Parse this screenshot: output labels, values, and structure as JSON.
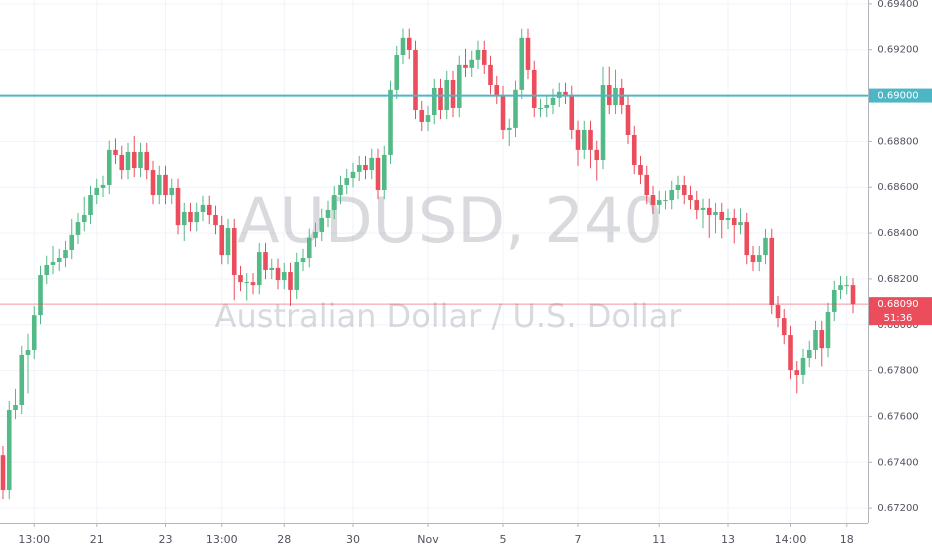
{
  "chart_data": {
    "type": "candlestick",
    "title": "AUDUSD, 240",
    "subtitle": "Australian Dollar / U.S. Dollar",
    "categories": [
      null,
      null,
      null,
      null,
      null,
      "13:00",
      null,
      null,
      null,
      null,
      null,
      null,
      null,
      null,
      null,
      "21",
      null,
      null,
      null,
      null,
      null,
      null,
      null,
      null,
      null,
      null,
      "23",
      null,
      null,
      null,
      null,
      null,
      null,
      null,
      null,
      "13:00",
      null,
      null,
      null,
      null,
      null,
      null,
      null,
      null,
      null,
      "28",
      null,
      null,
      null,
      null,
      null,
      null,
      null,
      null,
      null,
      null,
      "30",
      null,
      null,
      null,
      null,
      null,
      null,
      null,
      null,
      null,
      null,
      null,
      "Nov",
      null,
      null,
      null,
      null,
      null,
      null,
      null,
      null,
      null,
      null,
      null,
      "5",
      null,
      null,
      null,
      null,
      null,
      null,
      null,
      null,
      null,
      null,
      null,
      "7",
      null,
      null,
      null,
      null,
      null,
      null,
      null,
      null,
      null,
      null,
      null,
      null,
      "11",
      null,
      null,
      null,
      null,
      null,
      null,
      null,
      null,
      null,
      null,
      "13",
      null,
      null,
      null,
      null,
      null,
      null,
      null,
      null,
      null,
      "14:00",
      null,
      null,
      null,
      null,
      null,
      null,
      null,
      null,
      "18",
      null
    ],
    "open": [
      0.67431,
      0.67279,
      0.67628,
      0.6765,
      0.67868,
      0.6789,
      0.68042,
      0.68217,
      0.68261,
      0.68274,
      0.68291,
      0.68326,
      0.68392,
      0.68448,
      0.68479,
      0.68566,
      0.68597,
      0.6861,
      0.68763,
      0.68741,
      0.68675,
      0.68754,
      0.68684,
      0.68754,
      0.68675,
      0.68566,
      0.68654,
      0.68566,
      0.68597,
      0.68435,
      0.68492,
      0.68448,
      0.68492,
      0.68523,
      0.68479,
      0.68435,
      0.68304,
      0.68422,
      0.68217,
      0.68186,
      0.68186,
      0.68173,
      0.68317,
      0.68239,
      0.68248,
      0.68195,
      0.6823,
      0.68152,
      0.68274,
      0.68291,
      0.68379,
      0.68405,
      0.68466,
      0.68501,
      0.68566,
      0.6861,
      0.6864,
      0.68667,
      0.68697,
      0.68675,
      0.68728,
      0.68588,
      0.68741,
      0.69025,
      0.69177,
      0.69252,
      0.69199,
      0.68937,
      0.68885,
      0.68915,
      0.69033,
      0.68937,
      0.69068,
      0.68946,
      0.69134,
      0.69121,
      0.69156,
      0.69199,
      0.69134,
      0.69046,
      0.69003,
      0.6885,
      0.68859,
      0.69025,
      0.69252,
      0.69112,
      0.68946,
      0.68946,
      0.68959,
      0.6899,
      0.69016,
      0.69003,
      0.6885,
      0.68763,
      0.6885,
      0.68763,
      0.68719,
      0.69046,
      0.68959,
      0.69033,
      0.68959,
      0.68828,
      0.68697,
      0.68654,
      0.68566,
      0.68523,
      0.68544,
      0.68544,
      0.68588,
      0.6861,
      0.68566,
      0.68544,
      0.68501,
      0.6851,
      0.68479,
      0.68492,
      0.68457,
      0.68466,
      0.68435,
      0.68448,
      0.68304,
      0.68274,
      0.68304,
      0.68379,
      0.68086,
      0.68029,
      0.67955,
      0.67802,
      0.67781,
      0.67855,
      0.6789,
      0.67977,
      0.67898,
      0.68056,
      0.68152,
      0.68173,
      0.68173
    ],
    "high": [
      0.67471,
      0.67668,
      0.6772,
      0.67908,
      0.6796,
      0.68082,
      0.68257,
      0.68301,
      0.68344,
      0.68331,
      0.68366,
      0.68462,
      0.68488,
      0.68559,
      0.68606,
      0.68637,
      0.6865,
      0.68803,
      0.68813,
      0.68781,
      0.68794,
      0.68824,
      0.68794,
      0.68794,
      0.68715,
      0.68694,
      0.68694,
      0.68637,
      0.68637,
      0.68532,
      0.68532,
      0.68532,
      0.68563,
      0.68563,
      0.68519,
      0.68475,
      0.68462,
      0.68462,
      0.68257,
      0.68226,
      0.68226,
      0.68357,
      0.68357,
      0.68288,
      0.68288,
      0.6827,
      0.6827,
      0.68314,
      0.68331,
      0.68419,
      0.68445,
      0.68506,
      0.68541,
      0.68606,
      0.6865,
      0.6868,
      0.68707,
      0.68737,
      0.68737,
      0.68768,
      0.68768,
      0.68781,
      0.69065,
      0.69217,
      0.69292,
      0.69292,
      0.69239,
      0.68977,
      0.68955,
      0.69073,
      0.69073,
      0.69108,
      0.69108,
      0.69174,
      0.69204,
      0.69196,
      0.69239,
      0.69239,
      0.69174,
      0.69086,
      0.69043,
      0.68899,
      0.69065,
      0.69292,
      0.69292,
      0.69152,
      0.68986,
      0.68999,
      0.6903,
      0.69056,
      0.69056,
      0.69043,
      0.6889,
      0.6889,
      0.6889,
      0.68803,
      0.69126,
      0.69126,
      0.69113,
      0.69073,
      0.68999,
      0.68868,
      0.68737,
      0.68694,
      0.68606,
      0.68584,
      0.68584,
      0.68628,
      0.6865,
      0.6865,
      0.68606,
      0.68584,
      0.6855,
      0.6855,
      0.68532,
      0.68532,
      0.68506,
      0.68506,
      0.68508,
      0.68488,
      0.68344,
      0.68344,
      0.68419,
      0.68419,
      0.68126,
      0.68069,
      0.67995,
      0.67842,
      0.67895,
      0.6793,
      0.68017,
      0.68017,
      0.68096,
      0.68192,
      0.68213,
      0.68213,
      0.68203
    ],
    "low": [
      0.67239,
      0.67239,
      0.67588,
      0.6761,
      0.677,
      0.6785,
      0.68002,
      0.68177,
      0.68221,
      0.68234,
      0.68251,
      0.68286,
      0.68352,
      0.68408,
      0.68439,
      0.68526,
      0.68557,
      0.6857,
      0.68701,
      0.68635,
      0.68635,
      0.68644,
      0.68644,
      0.68635,
      0.68526,
      0.68526,
      0.68526,
      0.68526,
      0.68395,
      0.68365,
      0.68408,
      0.68408,
      0.68452,
      0.68439,
      0.68395,
      0.68264,
      0.68264,
      0.68107,
      0.68146,
      0.68106,
      0.68133,
      0.68133,
      0.68199,
      0.68199,
      0.68155,
      0.68155,
      0.68082,
      0.68112,
      0.68234,
      0.68251,
      0.68339,
      0.68365,
      0.68426,
      0.68461,
      0.68526,
      0.6857,
      0.686,
      0.68627,
      0.68635,
      0.68635,
      0.68548,
      0.68548,
      0.68701,
      0.68985,
      0.69137,
      0.69159,
      0.68897,
      0.68845,
      0.68845,
      0.68875,
      0.68897,
      0.68897,
      0.68906,
      0.68906,
      0.69081,
      0.69081,
      0.69116,
      0.69094,
      0.69006,
      0.68963,
      0.6881,
      0.6878,
      0.68819,
      0.68985,
      0.69072,
      0.68906,
      0.68906,
      0.68906,
      0.68919,
      0.6895,
      0.68963,
      0.6881,
      0.68693,
      0.68723,
      0.68683,
      0.68629,
      0.68679,
      0.68919,
      0.68919,
      0.68919,
      0.68788,
      0.68657,
      0.68614,
      0.68526,
      0.68483,
      0.68483,
      0.68504,
      0.68504,
      0.68548,
      0.68526,
      0.68504,
      0.68461,
      0.68421,
      0.68379,
      0.68399,
      0.68377,
      0.68417,
      0.68355,
      0.68395,
      0.68264,
      0.68234,
      0.68234,
      0.68264,
      0.68046,
      0.67989,
      0.67915,
      0.67762,
      0.67701,
      0.67741,
      0.67815,
      0.6785,
      0.67818,
      0.67858,
      0.68016,
      0.68112,
      0.68133,
      0.6805
    ],
    "close": [
      0.67279,
      0.67628,
      0.6765,
      0.67868,
      0.6789,
      0.68042,
      0.68217,
      0.68261,
      0.68274,
      0.68291,
      0.68326,
      0.68392,
      0.68448,
      0.68479,
      0.68566,
      0.68597,
      0.6861,
      0.68763,
      0.68741,
      0.68675,
      0.68754,
      0.68684,
      0.68754,
      0.68675,
      0.68566,
      0.68654,
      0.68566,
      0.68597,
      0.68435,
      0.68492,
      0.68448,
      0.68492,
      0.68523,
      0.68479,
      0.68435,
      0.68304,
      0.68422,
      0.68217,
      0.68186,
      0.68186,
      0.68173,
      0.68317,
      0.68239,
      0.68248,
      0.68195,
      0.6823,
      0.68152,
      0.68274,
      0.68291,
      0.68379,
      0.68405,
      0.68466,
      0.68501,
      0.68566,
      0.6861,
      0.6864,
      0.68667,
      0.68697,
      0.68675,
      0.68728,
      0.68588,
      0.68741,
      0.69025,
      0.69177,
      0.69252,
      0.69199,
      0.68937,
      0.68885,
      0.68915,
      0.69033,
      0.68937,
      0.69068,
      0.68946,
      0.69134,
      0.69121,
      0.69156,
      0.69199,
      0.69134,
      0.69046,
      0.69003,
      0.6885,
      0.68859,
      0.69025,
      0.69252,
      0.69112,
      0.68946,
      0.68946,
      0.68959,
      0.6899,
      0.69016,
      0.69003,
      0.6885,
      0.68763,
      0.6885,
      0.68763,
      0.68719,
      0.69046,
      0.68959,
      0.69033,
      0.68959,
      0.68828,
      0.68697,
      0.68654,
      0.68566,
      0.68523,
      0.68544,
      0.68544,
      0.68588,
      0.6861,
      0.68566,
      0.68544,
      0.68501,
      0.6851,
      0.68479,
      0.68492,
      0.68457,
      0.68466,
      0.68435,
      0.68448,
      0.68304,
      0.68274,
      0.68304,
      0.68379,
      0.68086,
      0.68029,
      0.67955,
      0.67802,
      0.67781,
      0.67855,
      0.6789,
      0.67977,
      0.67898,
      0.68056,
      0.68152,
      0.68173,
      0.68173,
      0.6809
    ],
    "up_color": "#53b987",
    "down_color": "#eb4d5c",
    "ylim": [
      0.67135,
      0.69417
    ],
    "yticks": [
      {
        "value": 0.672,
        "label": "0.67200"
      },
      {
        "value": 0.674,
        "label": "0.67400"
      },
      {
        "value": 0.676,
        "label": "0.67600"
      },
      {
        "value": 0.678,
        "label": "0.67800"
      },
      {
        "value": 0.68,
        "label": "0.68000"
      },
      {
        "value": 0.682,
        "label": "0.68200"
      },
      {
        "value": 0.684,
        "label": "0.68400"
      },
      {
        "value": 0.686,
        "label": "0.68600"
      },
      {
        "value": 0.688,
        "label": "0.68800"
      },
      {
        "value": 0.69,
        "label": "0.69000"
      },
      {
        "value": 0.692,
        "label": "0.69200"
      },
      {
        "value": 0.694,
        "label": "0.69400"
      }
    ],
    "grid": true,
    "level": {
      "value": 0.69,
      "label": "0.69000",
      "color": "#4db6c4"
    },
    "last_price": {
      "value": 0.6809,
      "label": "0.68090",
      "countdown": "51:36",
      "color": "#eb4d5c"
    }
  }
}
